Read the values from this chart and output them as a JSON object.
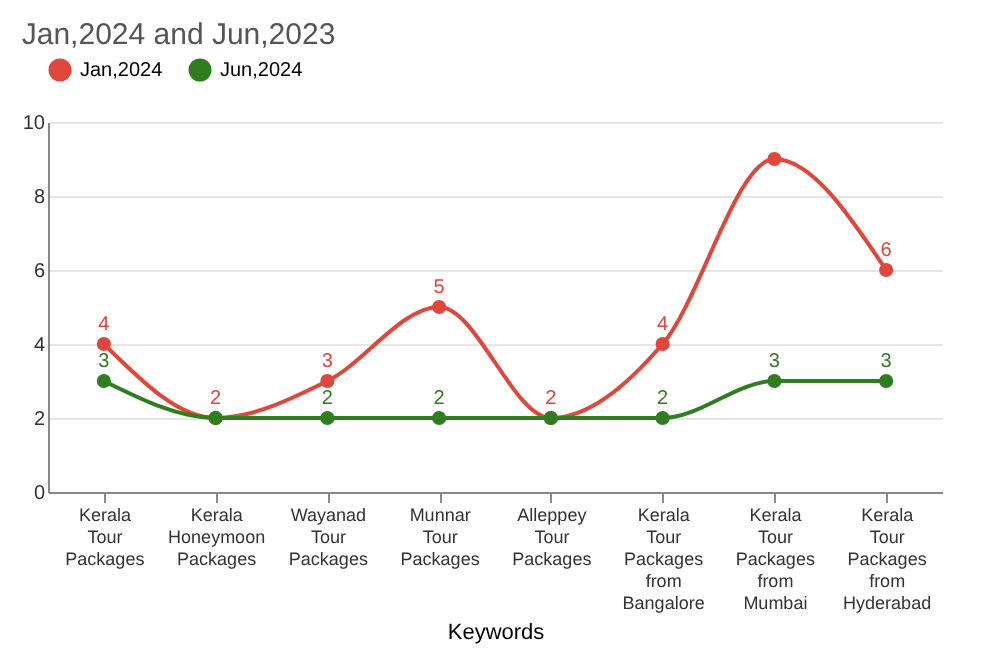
{
  "chart_data": {
    "type": "line",
    "title": "Jan,2024 and Jun,2023",
    "xlabel": "Keywords",
    "categories": [
      "Kerala Tour Packages",
      "Kerala Honeymoon Packages",
      "Wayanad Tour Packages",
      "Munnar Tour Packages",
      "Alleppey Tour Packages",
      "Kerala Tour Packages from Bangalore",
      "Kerala Tour Packages from Mumbai",
      "Kerala Tour Packages from Hyderabad"
    ],
    "series": [
      {
        "name": "Jan,2024",
        "color": "#e0463a",
        "values": [
          4,
          2,
          3,
          5,
          2,
          4,
          9,
          6
        ],
        "value_labels": [
          "4",
          "2",
          "3",
          "5",
          "2",
          "4",
          null,
          "6"
        ]
      },
      {
        "name": "Jun,2024",
        "color": "#2e7d1f",
        "values": [
          3,
          2,
          2,
          2,
          2,
          2,
          3,
          3
        ],
        "value_labels": [
          "3",
          null,
          "2",
          "2",
          null,
          "2",
          "3",
          "3"
        ]
      }
    ],
    "ylim": [
      0,
      10
    ],
    "yticks": [
      0,
      2,
      4,
      6,
      8,
      10
    ],
    "grid": "y",
    "legend": "top",
    "marker": "circle"
  }
}
